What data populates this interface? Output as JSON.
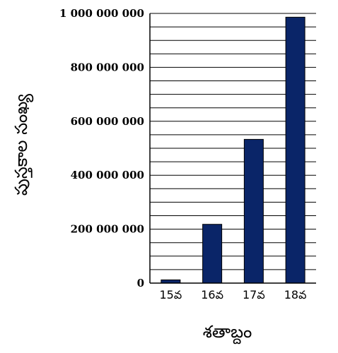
{
  "chart_data": {
    "type": "bar",
    "title": "",
    "xlabel": "శతాబ్దం",
    "ylabel": "పుస్తకాల సంఖ్య",
    "categories": [
      "15వ",
      "16వ",
      "17వ",
      "18వ"
    ],
    "values": [
      12000000,
      218000000,
      533000000,
      986000000
    ],
    "ylim": [
      0,
      1000000000
    ],
    "yticks": [
      0,
      200000000,
      400000000,
      600000000,
      800000000,
      1000000000
    ],
    "ytick_labels": [
      "0",
      "200 000 000",
      "400 000 000",
      "600 000 000",
      "800 000 000",
      "1 000 000 000"
    ],
    "grid": "horizontal",
    "bar_color": "#0a2568"
  }
}
